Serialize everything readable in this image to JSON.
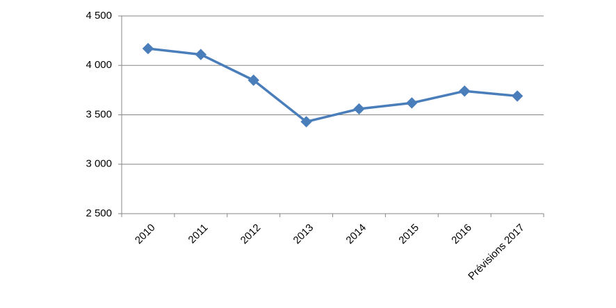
{
  "chart_data": {
    "type": "line",
    "categories": [
      "2010",
      "2011",
      "2012",
      "2013",
      "2014",
      "2015",
      "2016",
      "Prévisions 2017"
    ],
    "series": [
      {
        "color": "#4a7ebb",
        "values": [
          4170,
          4110,
          3850,
          3430,
          3560,
          3620,
          3740,
          3690
        ]
      }
    ],
    "ylim": [
      2500,
      4500
    ],
    "yticks": [
      {
        "value": 2500,
        "label": "2 500"
      },
      {
        "value": 3000,
        "label": "3 000"
      },
      {
        "value": 3500,
        "label": "3 500"
      },
      {
        "value": 4000,
        "label": "4 000"
      },
      {
        "value": 4500,
        "label": "4 500"
      }
    ],
    "grid": true
  }
}
